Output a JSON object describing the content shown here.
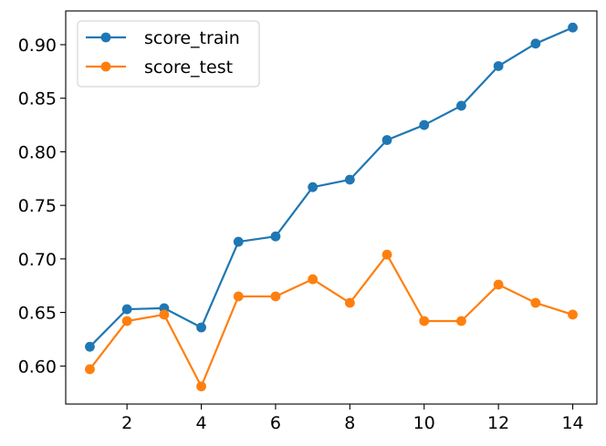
{
  "chart_data": {
    "type": "line",
    "title": "",
    "xlabel": "",
    "ylabel": "",
    "x": [
      1,
      2,
      3,
      4,
      5,
      6,
      7,
      8,
      9,
      10,
      11,
      12,
      13,
      14
    ],
    "xlim": [
      0.35,
      14.65
    ],
    "ylim": [
      0.5645,
      0.9315
    ],
    "xticks": [
      2,
      4,
      6,
      8,
      10,
      12,
      14
    ],
    "xtick_labels": [
      "2",
      "4",
      "6",
      "8",
      "10",
      "12",
      "14"
    ],
    "yticks": [
      0.6,
      0.65,
      0.7,
      0.75,
      0.8,
      0.85,
      0.9
    ],
    "ytick_labels": [
      "0.60",
      "0.65",
      "0.70",
      "0.75",
      "0.80",
      "0.85",
      "0.90"
    ],
    "grid": false,
    "legend_position": "top-left",
    "series": [
      {
        "name": "score_train",
        "color": "#1f77b4",
        "marker": "circle",
        "values": [
          0.618,
          0.653,
          0.654,
          0.636,
          0.716,
          0.721,
          0.767,
          0.774,
          0.811,
          0.825,
          0.843,
          0.88,
          0.901,
          0.916
        ]
      },
      {
        "name": "score_test",
        "color": "#ff7f0e",
        "marker": "circle",
        "values": [
          0.597,
          0.642,
          0.648,
          0.581,
          0.665,
          0.665,
          0.681,
          0.659,
          0.704,
          0.642,
          0.642,
          0.676,
          0.659,
          0.648
        ]
      }
    ]
  }
}
